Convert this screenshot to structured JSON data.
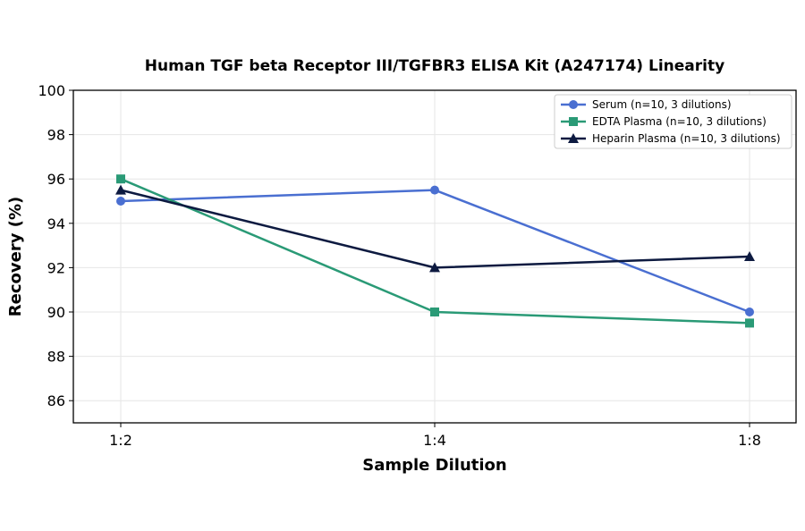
{
  "chart_data": {
    "type": "line",
    "title": "Human TGF beta Receptor III/TGFBR3 ELISA Kit (A247174) Linearity",
    "xlabel": "Sample Dilution",
    "ylabel": "Recovery (%)",
    "categories": [
      "1:2",
      "1:4",
      "1:8"
    ],
    "ylim": [
      85,
      100
    ],
    "yticks": [
      86,
      88,
      90,
      92,
      94,
      96,
      98,
      100
    ],
    "grid": true,
    "legend_position": "top-right",
    "series": [
      {
        "name": "Serum (n=10, 3 dilutions)",
        "values": [
          95,
          95.5,
          90
        ],
        "color": "#4a6fd1",
        "marker": "circle"
      },
      {
        "name": "EDTA Plasma (n=10, 3 dilutions)",
        "values": [
          96,
          90,
          89.5
        ],
        "color": "#2a9a76",
        "marker": "square"
      },
      {
        "name": "Heparin Plasma (n=10, 3 dilutions)",
        "values": [
          95.5,
          92,
          92.5
        ],
        "color": "#0d1a40",
        "marker": "triangle"
      }
    ]
  }
}
